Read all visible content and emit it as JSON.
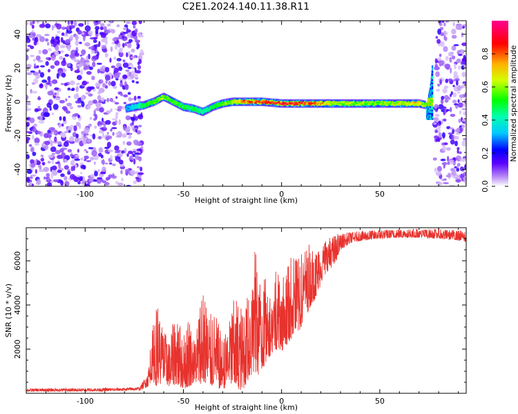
{
  "title": "C2E1.2024.140.11.38.R11",
  "chart_data": [
    {
      "type": "heatmap",
      "xlabel": "Height of straight line (km)",
      "ylabel": "Frequency (Hz)",
      "xlim": [
        -130,
        94
      ],
      "ylim": [
        -50,
        48
      ],
      "x_ticks": [
        -100,
        -50,
        0,
        50
      ],
      "y_ticks": [
        -40,
        -20,
        0,
        20,
        40
      ],
      "colorbar": {
        "label": "Normalized spectral amplitude",
        "range": [
          0,
          1
        ],
        "ticks": [
          0.0,
          0.2,
          0.4,
          0.6,
          0.8
        ],
        "colormap": "rainbow"
      },
      "noise_regions": [
        {
          "x_from": -130,
          "x_to": -71,
          "level": 0.1
        },
        {
          "x_from": 78,
          "x_to": 94,
          "level": 0.1
        }
      ],
      "ridge": {
        "x": [
          -79,
          -75,
          -70,
          -65,
          -60,
          -55,
          -50,
          -45,
          -40,
          -35,
          -30,
          -25,
          -20,
          -10,
          0,
          10,
          20,
          30,
          40,
          50,
          60,
          70,
          74,
          76,
          77
        ],
        "frequency": [
          -4,
          -3,
          -2,
          0,
          3,
          0,
          -3,
          -4,
          -6,
          -3,
          -1,
          0,
          0,
          0,
          -1,
          -1,
          -1,
          -1,
          -1,
          -1,
          -1,
          -1,
          -2,
          10,
          24
        ],
        "amplitude": [
          0.3,
          0.35,
          0.5,
          0.55,
          0.6,
          0.55,
          0.5,
          0.5,
          0.45,
          0.5,
          0.55,
          0.6,
          0.8,
          0.85,
          0.9,
          0.85,
          0.75,
          0.6,
          0.6,
          0.6,
          0.65,
          0.7,
          0.55,
          0.3,
          0.2
        ]
      }
    },
    {
      "type": "line",
      "xlabel": "Height of straight line (km)",
      "ylabel": "SNR (10 * v/v)",
      "xlim": [
        -130,
        94
      ],
      "ylim": [
        0,
        7500
      ],
      "x_ticks": [
        -100,
        -50,
        0,
        50
      ],
      "y_ticks": [
        2000,
        4000,
        6000
      ],
      "series": [
        {
          "color": "#e8322d",
          "x": [
            -130,
            -110,
            -90,
            -80,
            -72,
            -68,
            -66,
            -63,
            -60,
            -57,
            -54,
            -50,
            -47,
            -44,
            -40,
            -37,
            -34,
            -30,
            -27,
            -24,
            -20,
            -17,
            -14,
            -11,
            -8,
            -5,
            -2,
            0,
            3,
            6,
            9,
            12,
            15,
            18,
            21,
            24,
            27,
            30,
            35,
            40,
            50,
            60,
            70,
            80,
            88,
            94
          ],
          "lower": [
            80,
            90,
            100,
            120,
            150,
            300,
            600,
            250,
            500,
            300,
            400,
            200,
            300,
            500,
            400,
            350,
            300,
            150,
            400,
            300,
            100,
            600,
            900,
            800,
            1400,
            1800,
            2000,
            1900,
            2200,
            2600,
            2800,
            3400,
            4000,
            4400,
            5200,
            5600,
            5800,
            6500,
            6800,
            6900,
            7000,
            7050,
            7050,
            7000,
            6950,
            6850
          ],
          "upper": [
            220,
            230,
            240,
            250,
            300,
            1000,
            2800,
            4200,
            2900,
            2400,
            3800,
            2700,
            3500,
            2400,
            5000,
            3500,
            3800,
            2500,
            3200,
            4400,
            3800,
            4600,
            6800,
            5600,
            5200,
            4800,
            6400,
            5000,
            5900,
            6400,
            6100,
            6700,
            6800,
            6600,
            7000,
            7100,
            7200,
            7250,
            7300,
            7350,
            7400,
            7450,
            7450,
            7450,
            7400,
            7350
          ]
        }
      ]
    }
  ]
}
